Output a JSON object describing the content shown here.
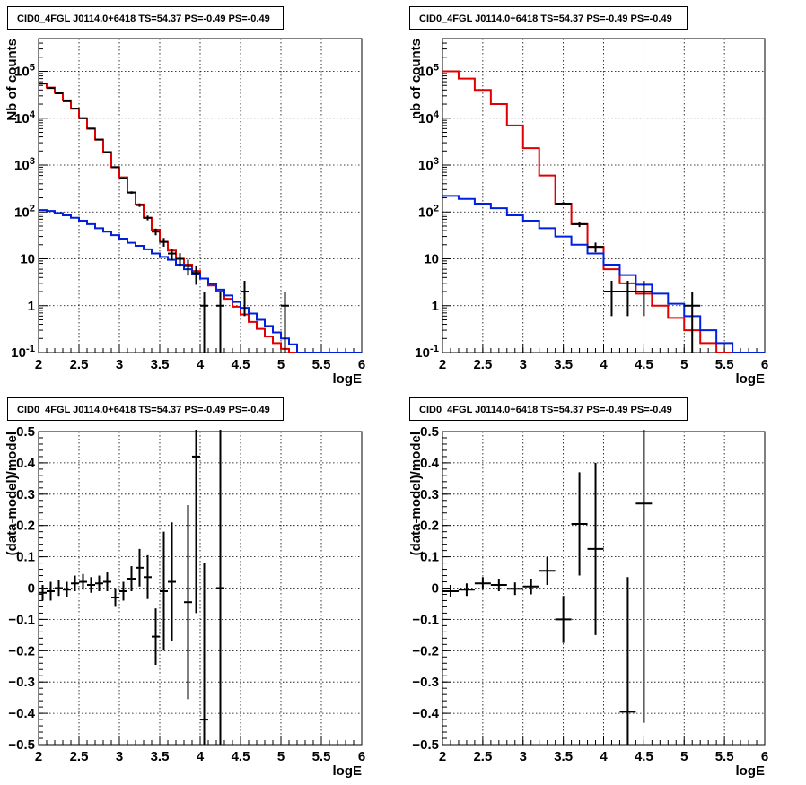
{
  "colors": {
    "data": "#000000",
    "total_model": "#e00000",
    "background_model": "#0020dd",
    "grid": "#000000"
  },
  "chart_data": [
    {
      "type": "line",
      "title": "CID0_4FGL J0114.0+6418 TS=54.37 PS=-0.49 PS=-0.49",
      "xlabel": "logE",
      "ylabel": "Nb of counts",
      "log_y": true,
      "xlim": [
        2,
        6
      ],
      "ylim": [
        0.1,
        500000
      ],
      "grid": true,
      "x_ticks": [
        "2",
        "2.5",
        "3",
        "3.5",
        "4",
        "4.5",
        "5",
        "5.5",
        "6"
      ],
      "y_ticks": [
        "10^{-1}",
        "1",
        "10",
        "10^{2}",
        "10^{3}",
        "10^{4}",
        "10^{5}"
      ],
      "bin_width": 0.1,
      "series": [
        {
          "role": "total_model",
          "style": "step",
          "x": [
            2.0,
            2.1,
            2.2,
            2.3,
            2.4,
            2.5,
            2.6,
            2.7,
            2.8,
            2.9,
            3.0,
            3.1,
            3.2,
            3.3,
            3.4,
            3.5,
            3.6,
            3.7,
            3.8,
            3.9,
            4.0,
            4.1,
            4.2,
            4.3,
            4.4,
            4.5,
            4.6,
            4.7,
            4.8,
            4.9,
            5.0,
            5.1,
            5.2,
            5.3,
            5.4,
            5.5,
            5.6,
            5.7,
            5.8,
            5.9
          ],
          "values": [
            55000,
            45000,
            35000,
            24000,
            16000,
            10000,
            6000,
            3500,
            1900,
            900,
            550,
            260,
            145,
            75,
            42,
            23,
            15,
            10,
            7.5,
            5.5,
            3.8,
            2.7,
            2.0,
            1.4,
            0.95,
            0.65,
            0.45,
            0.32,
            0.22,
            0.16,
            0.12,
            0.1,
            0.1,
            0.1,
            0.1,
            0.1,
            0.1,
            0.1,
            0.1,
            0.1
          ]
        },
        {
          "role": "background_model",
          "style": "step",
          "x": [
            2.0,
            2.1,
            2.2,
            2.3,
            2.4,
            2.5,
            2.6,
            2.7,
            2.8,
            2.9,
            3.0,
            3.1,
            3.2,
            3.3,
            3.4,
            3.5,
            3.6,
            3.7,
            3.8,
            3.9,
            4.0,
            4.1,
            4.2,
            4.3,
            4.4,
            4.5,
            4.6,
            4.7,
            4.8,
            4.9,
            5.0,
            5.1,
            5.2,
            5.3,
            5.4,
            5.5,
            5.6,
            5.7,
            5.8,
            5.9
          ],
          "values": [
            110,
            105,
            95,
            85,
            75,
            65,
            55,
            45,
            38,
            32,
            27,
            22,
            19,
            16,
            13,
            11,
            9.5,
            7.5,
            6,
            4.8,
            3.8,
            2.9,
            2.2,
            1.65,
            1.2,
            0.9,
            0.68,
            0.5,
            0.37,
            0.27,
            0.2,
            0.15,
            0.1,
            0.1,
            0.1,
            0.1,
            0.1,
            0.1,
            0.1,
            0.1
          ]
        },
        {
          "role": "data",
          "style": "errorbar",
          "x": [
            2.05,
            2.15,
            2.25,
            2.35,
            2.45,
            2.55,
            2.65,
            2.75,
            2.85,
            2.95,
            3.05,
            3.15,
            3.25,
            3.35,
            3.45,
            3.55,
            3.65,
            3.75,
            3.85,
            3.95,
            4.05,
            4.25,
            4.55,
            5.05
          ],
          "values": [
            55000,
            44000,
            34000,
            23000,
            16000,
            10000,
            6000,
            3500,
            1900,
            900,
            520,
            260,
            140,
            75,
            38,
            23,
            13,
            10,
            7,
            5,
            1,
            1,
            2,
            1
          ],
          "err": [
            235,
            210,
            185,
            150,
            126,
            100,
            77,
            59,
            44,
            30,
            23,
            16,
            12,
            8.7,
            6.2,
            4.8,
            3.6,
            3.2,
            2.6,
            2.2,
            1,
            1,
            1.4,
            1
          ]
        }
      ]
    },
    {
      "type": "line",
      "title": "CID0_4FGL J0114.0+6418 TS=54.37 PS=-0.49 PS=-0.49",
      "xlabel": "logE",
      "ylabel": "nb of counts",
      "log_y": true,
      "xlim": [
        2,
        6
      ],
      "ylim": [
        0.1,
        500000
      ],
      "grid": true,
      "x_ticks": [
        "2",
        "2.5",
        "3",
        "3.5",
        "4",
        "4.5",
        "5",
        "5.5",
        "6"
      ],
      "y_ticks": [
        "10^{-1}",
        "1",
        "10",
        "10^{2}",
        "10^{3}",
        "10^{4}",
        "10^{5}"
      ],
      "bin_width": 0.2,
      "series": [
        {
          "role": "total_model",
          "style": "step",
          "x": [
            2.0,
            2.2,
            2.4,
            2.6,
            2.8,
            3.0,
            3.2,
            3.4,
            3.6,
            3.8,
            4.0,
            4.2,
            4.4,
            4.6,
            4.8,
            5.0,
            5.2,
            5.4,
            5.6,
            5.8
          ],
          "values": [
            100000,
            70000,
            40000,
            20000,
            7000,
            2300,
            600,
            150,
            55,
            18,
            6,
            3,
            1.8,
            1.0,
            0.55,
            0.3,
            0.16,
            0.1,
            0.1,
            0.1
          ]
        },
        {
          "role": "background_model",
          "style": "step",
          "x": [
            2.0,
            2.2,
            2.4,
            2.6,
            2.8,
            3.0,
            3.2,
            3.4,
            3.6,
            3.8,
            4.0,
            4.2,
            4.4,
            4.6,
            4.8,
            5.0,
            5.2,
            5.4,
            5.6,
            5.8
          ],
          "values": [
            220,
            190,
            150,
            120,
            85,
            65,
            45,
            30,
            20,
            13,
            7.5,
            4.5,
            2.8,
            1.8,
            1.1,
            0.6,
            0.3,
            0.16,
            0.1,
            0.1
          ]
        },
        {
          "role": "data",
          "style": "errorbar",
          "x": [
            3.5,
            3.7,
            3.9,
            4.1,
            4.3,
            4.5,
            5.1
          ],
          "values": [
            150,
            55,
            18,
            2,
            2,
            2,
            1
          ],
          "err": [
            12.2,
            7.4,
            4.2,
            1.4,
            1.4,
            1.4,
            1
          ]
        }
      ]
    },
    {
      "type": "scatter",
      "title": "CID0_4FGL J0114.0+6418 TS=54.37 PS=-0.49 PS=-0.49",
      "xlabel": "logE",
      "ylabel": "(data-model)/model",
      "log_y": false,
      "xlim": [
        2,
        6
      ],
      "ylim": [
        -0.5,
        0.5
      ],
      "grid": true,
      "x_ticks": [
        "2",
        "2.5",
        "3",
        "3.5",
        "4",
        "4.5",
        "5",
        "5.5",
        "6"
      ],
      "y_ticks": [
        "-0.5",
        "-0.4",
        "-0.3",
        "-0.2",
        "-0.1",
        "0",
        "0.1",
        "0.2",
        "0.3",
        "0.4",
        "0.5"
      ],
      "bin_width": 0.1,
      "series": [
        {
          "role": "data",
          "style": "errorbar",
          "x": [
            2.05,
            2.15,
            2.25,
            2.35,
            2.45,
            2.55,
            2.65,
            2.75,
            2.85,
            2.95,
            3.05,
            3.15,
            3.25,
            3.35,
            3.45,
            3.55,
            3.65,
            3.85,
            3.95,
            4.05,
            4.25
          ],
          "values": [
            -0.015,
            -0.01,
            0.0,
            -0.005,
            0.015,
            0.02,
            0.01,
            0.015,
            0.02,
            -0.03,
            -0.01,
            0.03,
            0.065,
            0.035,
            -0.155,
            -0.01,
            0.02,
            -0.045,
            0.42,
            -0.42,
            0.0
          ],
          "err": [
            0.025,
            0.03,
            0.025,
            0.025,
            0.025,
            0.025,
            0.025,
            0.025,
            0.03,
            0.03,
            0.03,
            0.04,
            0.06,
            0.07,
            0.09,
            0.19,
            0.19,
            0.31,
            0.5,
            0.5,
            0.7
          ]
        }
      ]
    },
    {
      "type": "scatter",
      "title": "CID0_4FGL J0114.0+6418 TS=54.37 PS=-0.49 PS=-0.49",
      "xlabel": "logE",
      "ylabel": "(data-model)/model",
      "log_y": false,
      "xlim": [
        2,
        6
      ],
      "ylim": [
        -0.5,
        0.5
      ],
      "grid": true,
      "x_ticks": [
        "2",
        "2.5",
        "3",
        "3.5",
        "4",
        "4.5",
        "5",
        "5.5",
        "6"
      ],
      "y_ticks": [
        "-0.5",
        "-0.4",
        "-0.3",
        "-0.2",
        "-0.1",
        "0",
        "0.1",
        "0.2",
        "0.3",
        "0.4",
        "0.5"
      ],
      "bin_width": 0.2,
      "series": [
        {
          "role": "data",
          "style": "errorbar",
          "x": [
            2.1,
            2.3,
            2.5,
            2.7,
            2.9,
            3.1,
            3.3,
            3.5,
            3.7,
            3.9,
            4.3,
            4.5
          ],
          "values": [
            -0.01,
            -0.005,
            0.015,
            0.01,
            -0.002,
            0.005,
            0.055,
            -0.1,
            0.205,
            0.125,
            -0.395,
            0.27
          ],
          "err": [
            0.02,
            0.02,
            0.02,
            0.02,
            0.02,
            0.025,
            0.045,
            0.075,
            0.165,
            0.275,
            0.43,
            0.7
          ]
        }
      ]
    }
  ]
}
